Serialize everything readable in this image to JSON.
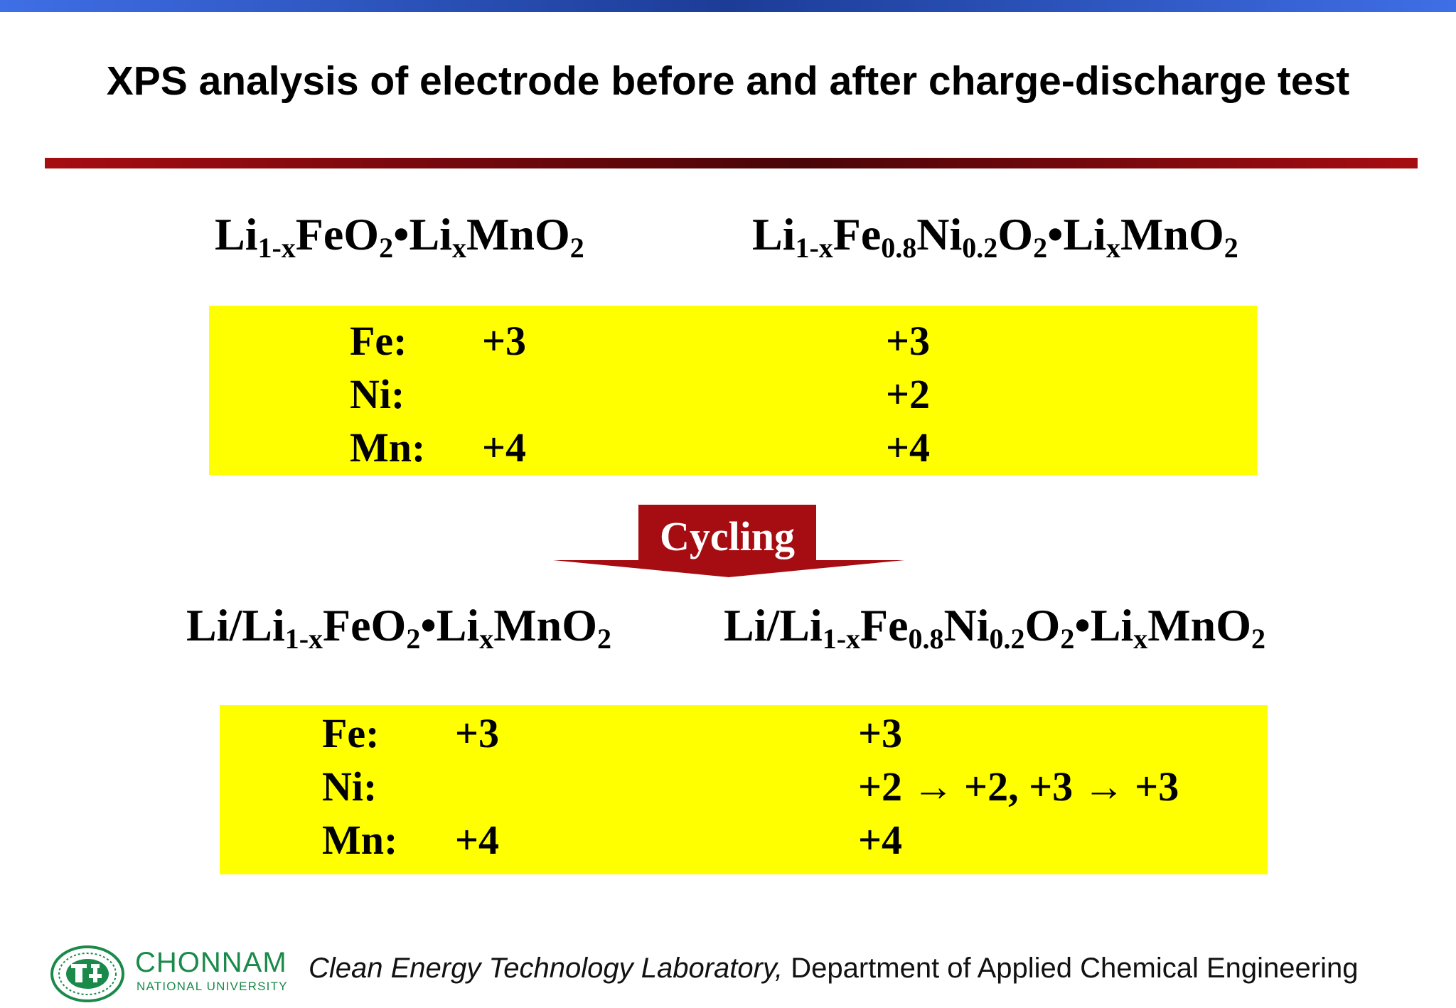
{
  "slide": {
    "title": "XPS analysis of electrode before and after charge-discharge test"
  },
  "before": {
    "formula_left": {
      "parts": [
        "Li",
        "1-x",
        "FeO",
        "2",
        "•Li",
        "x",
        "MnO",
        "2"
      ]
    },
    "formula_right": {
      "parts": [
        "Li",
        "1-x",
        "Fe",
        "0.8",
        "Ni",
        "0.2",
        "O",
        "2",
        "•Li",
        "x",
        "MnO",
        "2"
      ]
    },
    "rows": [
      {
        "element": "Fe:",
        "left": "+3",
        "right": "+3"
      },
      {
        "element": "Ni:",
        "left": "",
        "right": "+2"
      },
      {
        "element": "Mn:",
        "left": "+4",
        "right": "+4"
      }
    ]
  },
  "arrow": {
    "label": "Cycling",
    "color": "#a60d12"
  },
  "after": {
    "formula_left": {
      "parts": [
        "Li/Li",
        "1-x",
        "FeO",
        "2",
        "•Li",
        "x",
        "MnO",
        "2"
      ]
    },
    "formula_right": {
      "parts": [
        "Li/Li",
        "1-x",
        "Fe",
        "0.8",
        "Ni",
        "0.2",
        "O",
        "2",
        "•Li",
        "x",
        "MnO",
        "2"
      ]
    },
    "rows": [
      {
        "element": "Fe:",
        "left": "+3",
        "right": "+3"
      },
      {
        "element": "Ni:",
        "left": "",
        "right": "+2 → +2, +3 → +3"
      },
      {
        "element": "Mn:",
        "left": "+4",
        "right": "+4"
      }
    ]
  },
  "footer": {
    "university": "CHONNAM",
    "university_sub": "NATIONAL UNIVERSITY",
    "lab": "Clean Energy Technology Laboratory,",
    "department": " Department of Applied Chemical Engineering"
  },
  "colors": {
    "highlight": "#ffff00",
    "rule": "#a60d12",
    "top_bar": "#3f6fe6",
    "logo_green": "#1a8a4a"
  }
}
